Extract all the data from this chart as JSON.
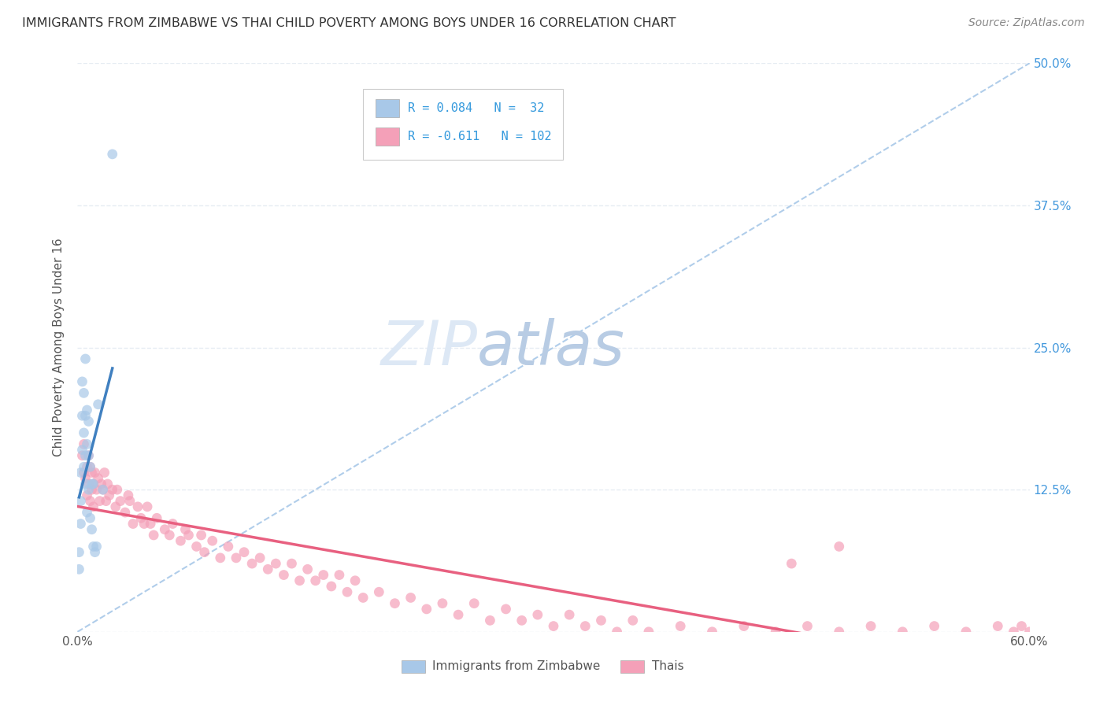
{
  "title": "IMMIGRANTS FROM ZIMBABWE VS THAI CHILD POVERTY AMONG BOYS UNDER 16 CORRELATION CHART",
  "source": "Source: ZipAtlas.com",
  "ylabel": "Child Poverty Among Boys Under 16",
  "xlim": [
    0.0,
    0.6
  ],
  "ylim": [
    0.0,
    0.5
  ],
  "xtick_vals": [
    0.0,
    0.1,
    0.2,
    0.3,
    0.4,
    0.5,
    0.6
  ],
  "xtick_labels": [
    "0.0%",
    "",
    "",
    "",
    "",
    "",
    "60.0%"
  ],
  "ytick_vals": [
    0.0,
    0.125,
    0.25,
    0.375,
    0.5
  ],
  "ytick_labels_right": [
    "",
    "12.5%",
    "25.0%",
    "37.5%",
    "50.0%"
  ],
  "R_zim": 0.084,
  "N_zim": 32,
  "R_thai": -0.611,
  "N_thai": 102,
  "color_zim": "#a8c8e8",
  "color_thai": "#f4a0b8",
  "trendline_zim_color": "#4080c0",
  "trendline_thai_color": "#e8507080",
  "trendline_dashed_color": "#a8c8e8",
  "legend_text_color": "#3399dd",
  "title_color": "#333333",
  "source_color": "#888888",
  "watermark_zip_color": "#dde8f5",
  "watermark_atlas_color": "#b8cce4",
  "background_color": "#ffffff",
  "grid_color": "#e0e8f0",
  "right_tick_color": "#4499dd",
  "zim_x": [
    0.001,
    0.001,
    0.002,
    0.002,
    0.002,
    0.003,
    0.003,
    0.003,
    0.004,
    0.004,
    0.004,
    0.005,
    0.005,
    0.005,
    0.005,
    0.006,
    0.006,
    0.006,
    0.007,
    0.007,
    0.007,
    0.008,
    0.008,
    0.009,
    0.009,
    0.01,
    0.01,
    0.011,
    0.012,
    0.013,
    0.016,
    0.022
  ],
  "zim_y": [
    0.07,
    0.055,
    0.14,
    0.115,
    0.095,
    0.22,
    0.19,
    0.16,
    0.175,
    0.145,
    0.21,
    0.24,
    0.19,
    0.155,
    0.13,
    0.195,
    0.165,
    0.105,
    0.185,
    0.155,
    0.125,
    0.145,
    0.1,
    0.13,
    0.09,
    0.13,
    0.075,
    0.07,
    0.075,
    0.2,
    0.125,
    0.42
  ],
  "thai_x": [
    0.003,
    0.004,
    0.004,
    0.005,
    0.006,
    0.006,
    0.007,
    0.007,
    0.008,
    0.008,
    0.009,
    0.009,
    0.01,
    0.01,
    0.011,
    0.012,
    0.013,
    0.014,
    0.015,
    0.016,
    0.017,
    0.018,
    0.019,
    0.02,
    0.022,
    0.024,
    0.025,
    0.027,
    0.03,
    0.032,
    0.033,
    0.035,
    0.038,
    0.04,
    0.042,
    0.044,
    0.046,
    0.048,
    0.05,
    0.055,
    0.058,
    0.06,
    0.065,
    0.068,
    0.07,
    0.075,
    0.078,
    0.08,
    0.085,
    0.09,
    0.095,
    0.1,
    0.105,
    0.11,
    0.115,
    0.12,
    0.125,
    0.13,
    0.135,
    0.14,
    0.145,
    0.15,
    0.155,
    0.16,
    0.165,
    0.17,
    0.175,
    0.18,
    0.19,
    0.2,
    0.21,
    0.22,
    0.23,
    0.24,
    0.25,
    0.26,
    0.27,
    0.28,
    0.29,
    0.3,
    0.31,
    0.32,
    0.33,
    0.34,
    0.35,
    0.36,
    0.38,
    0.4,
    0.42,
    0.44,
    0.46,
    0.48,
    0.5,
    0.52,
    0.54,
    0.56,
    0.58,
    0.59,
    0.595,
    0.6,
    0.45,
    0.48
  ],
  "thai_y": [
    0.155,
    0.14,
    0.165,
    0.135,
    0.145,
    0.12,
    0.155,
    0.13,
    0.145,
    0.115,
    0.14,
    0.125,
    0.13,
    0.11,
    0.14,
    0.125,
    0.135,
    0.115,
    0.13,
    0.125,
    0.14,
    0.115,
    0.13,
    0.12,
    0.125,
    0.11,
    0.125,
    0.115,
    0.105,
    0.12,
    0.115,
    0.095,
    0.11,
    0.1,
    0.095,
    0.11,
    0.095,
    0.085,
    0.1,
    0.09,
    0.085,
    0.095,
    0.08,
    0.09,
    0.085,
    0.075,
    0.085,
    0.07,
    0.08,
    0.065,
    0.075,
    0.065,
    0.07,
    0.06,
    0.065,
    0.055,
    0.06,
    0.05,
    0.06,
    0.045,
    0.055,
    0.045,
    0.05,
    0.04,
    0.05,
    0.035,
    0.045,
    0.03,
    0.035,
    0.025,
    0.03,
    0.02,
    0.025,
    0.015,
    0.025,
    0.01,
    0.02,
    0.01,
    0.015,
    0.005,
    0.015,
    0.005,
    0.01,
    0.0,
    0.01,
    0.0,
    0.005,
    0.0,
    0.005,
    0.0,
    0.005,
    0.0,
    0.005,
    0.0,
    0.005,
    0.0,
    0.005,
    0.0,
    0.005,
    0.0,
    0.06,
    0.075
  ]
}
